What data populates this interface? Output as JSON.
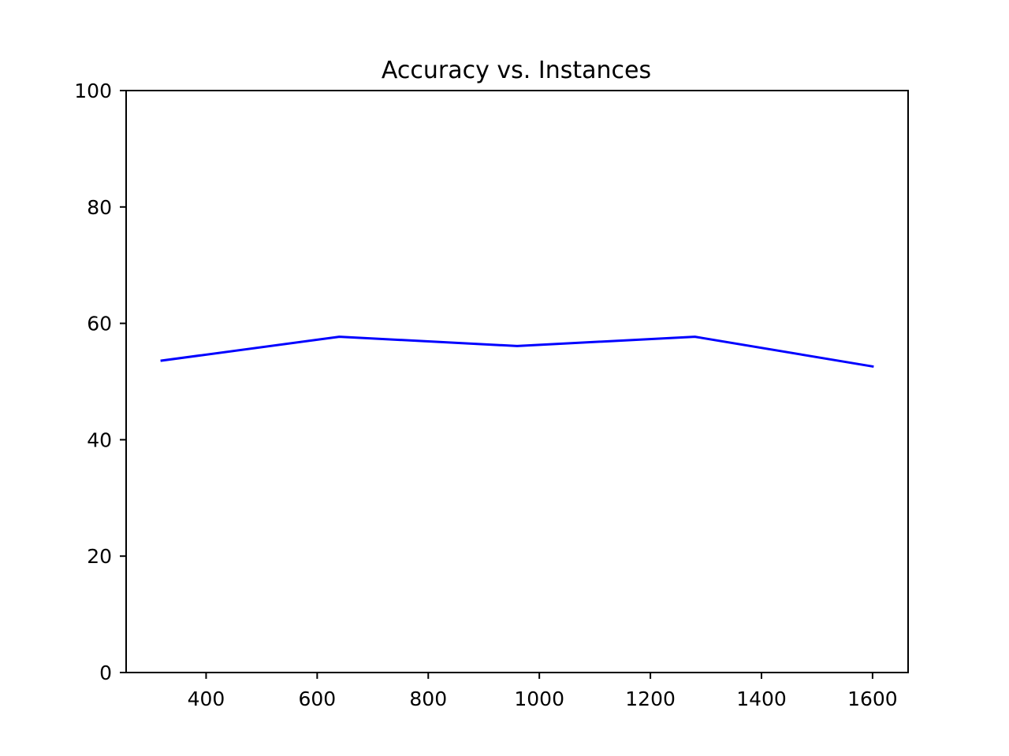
{
  "chart_data": {
    "type": "line",
    "title": "Accuracy vs. Instances",
    "xlabel": "",
    "ylabel": "",
    "x": [
      320,
      640,
      960,
      1280,
      1600
    ],
    "series": [
      {
        "values": [
          53.6,
          57.7,
          56.1,
          57.7,
          52.6
        ],
        "color": "#0000ff"
      }
    ],
    "xlim": [
      256,
      1664
    ],
    "ylim": [
      0,
      100
    ],
    "xticks": [
      400,
      600,
      800,
      1000,
      1200,
      1400,
      1600
    ],
    "yticks": [
      0,
      20,
      40,
      60,
      80,
      100
    ],
    "xtick_labels": [
      "400",
      "600",
      "800",
      "1000",
      "1200",
      "1400",
      "1600"
    ],
    "ytick_labels": [
      "0",
      "20",
      "40",
      "60",
      "80",
      "100"
    ],
    "grid": false,
    "legend": "none"
  }
}
